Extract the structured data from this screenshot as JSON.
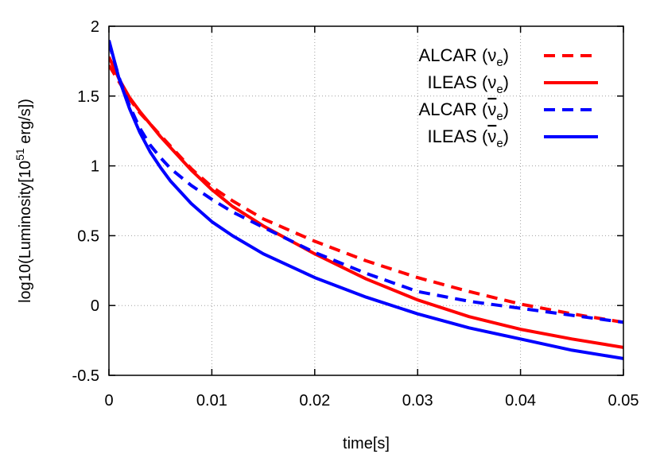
{
  "chart_data": {
    "type": "line",
    "xlabel": "time[s]",
    "ylabel_parts": {
      "pre": "log10(Luminosity[10",
      "sup": "51",
      "post": " erg/s])"
    },
    "xlim": [
      0,
      0.05
    ],
    "ylim": [
      -0.5,
      2
    ],
    "x_ticks": [
      0,
      0.01,
      0.02,
      0.03,
      0.04,
      0.05
    ],
    "x_tick_labels": [
      "0",
      "0.01",
      "0.02",
      "0.03",
      "0.04",
      "0.05"
    ],
    "y_ticks": [
      -0.5,
      0,
      0.5,
      1,
      1.5,
      2
    ],
    "y_tick_labels": [
      "-0.5",
      "0",
      "0.5",
      "1",
      "1.5",
      "2"
    ],
    "grid": true,
    "legend_position": "top-right",
    "series": [
      {
        "name": "ALCAR (νe)",
        "label_prefix": "ALCAR (",
        "label_nu": "ν",
        "label_bar": false,
        "label_sub": "e",
        "label_suffix": ")",
        "color": "#ff0000",
        "dash": "dashed",
        "x": [
          0.0,
          0.001,
          0.002,
          0.003,
          0.004,
          0.005,
          0.006,
          0.008,
          0.01,
          0.012,
          0.015,
          0.02,
          0.025,
          0.03,
          0.035,
          0.04,
          0.045,
          0.05
        ],
        "y": [
          1.72,
          1.6,
          1.48,
          1.38,
          1.3,
          1.22,
          1.14,
          0.98,
          0.85,
          0.75,
          0.62,
          0.46,
          0.32,
          0.2,
          0.1,
          0.01,
          -0.06,
          -0.12
        ]
      },
      {
        "name": "ILEAS (νe)",
        "label_prefix": "ILEAS (",
        "label_nu": "ν",
        "label_bar": false,
        "label_sub": "e",
        "label_suffix": ")",
        "color": "#ff0000",
        "dash": "solid",
        "x": [
          0.0,
          0.001,
          0.002,
          0.003,
          0.004,
          0.005,
          0.006,
          0.008,
          0.01,
          0.012,
          0.015,
          0.02,
          0.025,
          0.03,
          0.035,
          0.04,
          0.045,
          0.05
        ],
        "y": [
          1.78,
          1.62,
          1.49,
          1.39,
          1.3,
          1.21,
          1.13,
          0.97,
          0.83,
          0.71,
          0.57,
          0.37,
          0.19,
          0.04,
          -0.08,
          -0.17,
          -0.24,
          -0.3
        ]
      },
      {
        "name": "ALCAR (ν̄e)",
        "label_prefix": "ALCAR (",
        "label_nu": "ν",
        "label_bar": true,
        "label_sub": "e",
        "label_suffix": ")",
        "color": "#0000ff",
        "dash": "dashed",
        "x": [
          0.0,
          0.001,
          0.002,
          0.003,
          0.004,
          0.005,
          0.006,
          0.008,
          0.01,
          0.012,
          0.015,
          0.02,
          0.025,
          0.03,
          0.035,
          0.04,
          0.045,
          0.05
        ],
        "y": [
          1.88,
          1.63,
          1.43,
          1.27,
          1.15,
          1.06,
          0.98,
          0.86,
          0.76,
          0.67,
          0.56,
          0.38,
          0.23,
          0.1,
          0.03,
          -0.02,
          -0.07,
          -0.12
        ]
      },
      {
        "name": "ILEAS (ν̄e)",
        "label_prefix": "ILEAS (",
        "label_nu": "ν",
        "label_bar": true,
        "label_sub": "e",
        "label_suffix": ")",
        "color": "#0000ff",
        "dash": "solid",
        "x": [
          0.0,
          0.001,
          0.002,
          0.003,
          0.004,
          0.005,
          0.006,
          0.008,
          0.01,
          0.012,
          0.015,
          0.02,
          0.025,
          0.03,
          0.035,
          0.04,
          0.045,
          0.05
        ],
        "y": [
          1.9,
          1.62,
          1.41,
          1.24,
          1.1,
          0.99,
          0.89,
          0.73,
          0.6,
          0.5,
          0.37,
          0.2,
          0.06,
          -0.06,
          -0.16,
          -0.24,
          -0.32,
          -0.38
        ]
      }
    ]
  }
}
